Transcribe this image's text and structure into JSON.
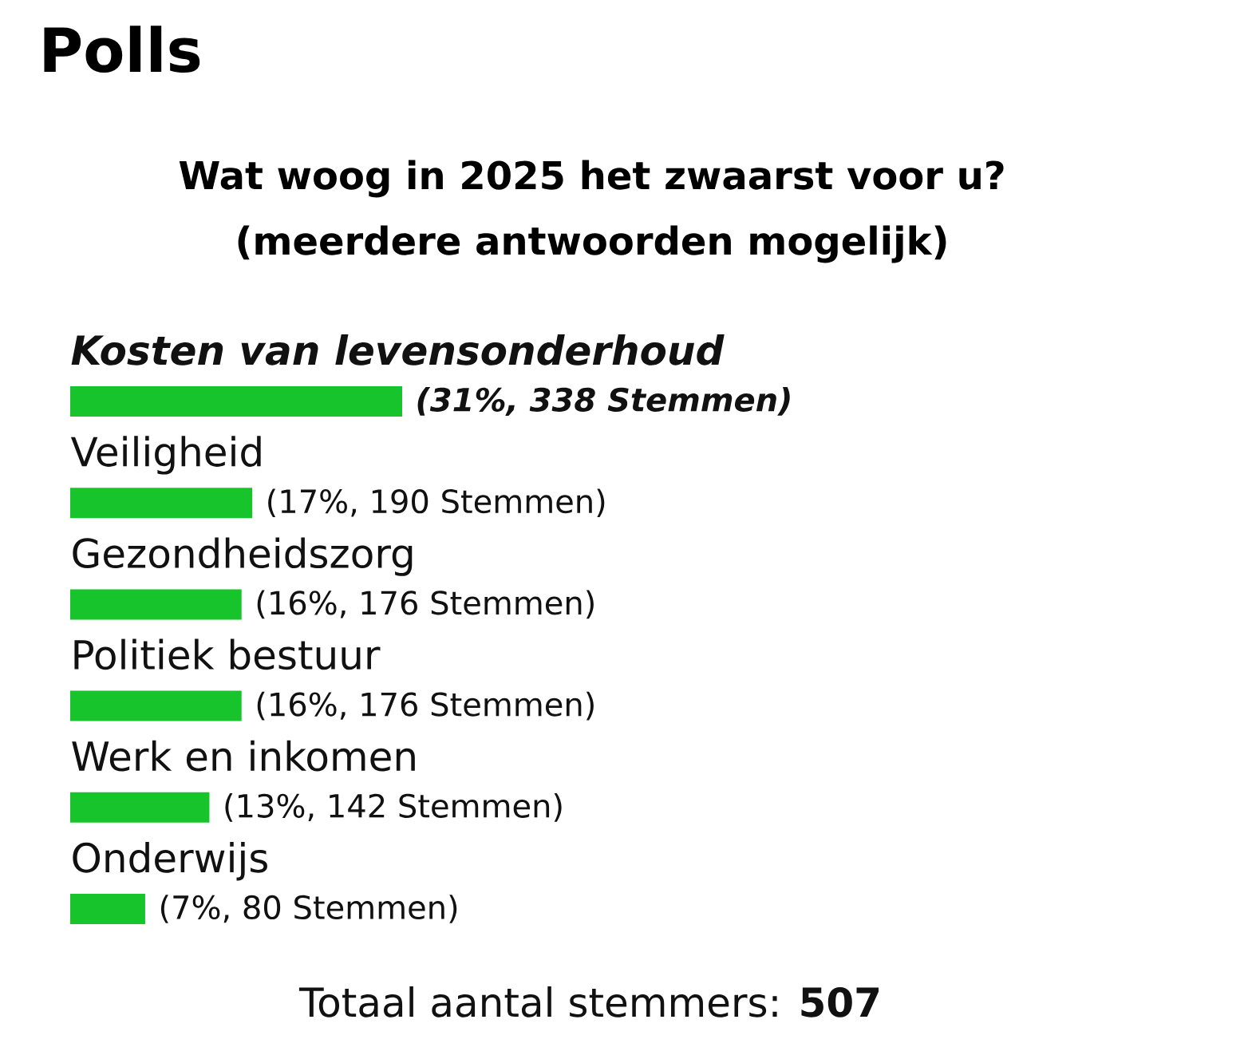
{
  "chart_data": {
    "type": "bar",
    "orientation": "horizontal",
    "title": "Polls",
    "subtitle": "Wat woog in 2025 het zwaarst voor u? (meerdere antwoorden mogelijk)",
    "categories": [
      "Kosten van levensonderhoud",
      "Veiligheid",
      "Gezondheidszorg",
      "Politiek bestuur",
      "Werk en inkomen",
      "Onderwijs"
    ],
    "values": [
      31,
      17,
      16,
      16,
      13,
      7
    ],
    "value_labels": [
      "(31%, 338 Stemmen)",
      "(17%, 190 Stemmen)",
      "(16%, 176 Stemmen)",
      "(16%, 176 Stemmen)",
      "(13%, 142 Stemmen)",
      "(7%, 80 Stemmen)"
    ],
    "color": "#17c42b",
    "annotations": [
      "Totaal aantal stemmers: **507**"
    ]
  }
}
